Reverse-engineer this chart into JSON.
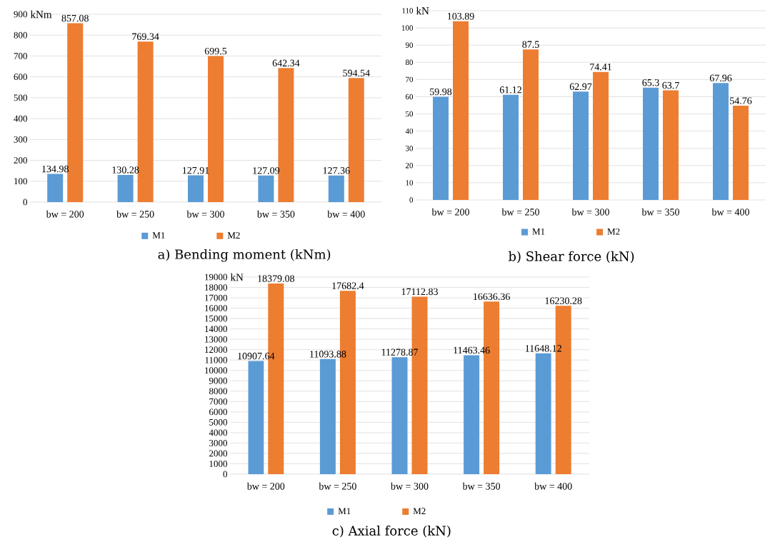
{
  "chart_data": [
    {
      "type": "bar",
      "title": "a) Bending moment (kNm)",
      "ylabel": "kNm",
      "categories": [
        "bw = 200",
        "bw = 250",
        "bw = 300",
        "bw = 350",
        "bw = 400"
      ],
      "series": [
        {
          "name": "M1",
          "color": "#5b9bd5",
          "values": [
            134.98,
            130.28,
            127.91,
            127.09,
            127.36
          ]
        },
        {
          "name": "M2",
          "color": "#ed7d31",
          "values": [
            857.08,
            769.34,
            699.5,
            642.34,
            594.54
          ]
        }
      ],
      "ylim": [
        0,
        900
      ],
      "yticks": [
        0,
        100,
        200,
        300,
        400,
        500,
        600,
        700,
        800,
        900
      ],
      "grid": "y",
      "legend": "bottom",
      "data_labels": true
    },
    {
      "type": "bar",
      "title": "b) Shear force (kN)",
      "ylabel": "kN",
      "categories": [
        "bw = 200",
        "bw = 250",
        "bw = 300",
        "bw = 350",
        "bw = 400"
      ],
      "series": [
        {
          "name": "M1",
          "color": "#5b9bd5",
          "values": [
            59.98,
            61.12,
            62.97,
            65.3,
            67.96
          ]
        },
        {
          "name": "M2",
          "color": "#ed7d31",
          "values": [
            103.89,
            87.5,
            74.41,
            63.7,
            54.76
          ]
        }
      ],
      "ylim": [
        0,
        110
      ],
      "yticks": [
        0,
        10,
        20,
        30,
        40,
        50,
        60,
        70,
        80,
        90,
        100,
        110
      ],
      "grid": "y",
      "legend": "bottom",
      "data_labels": true
    },
    {
      "type": "bar",
      "title": "c) Axial force (kN)",
      "ylabel": "kN",
      "categories": [
        "bw = 200",
        "bw = 250",
        "bw = 300",
        "bw = 350",
        "bw = 400"
      ],
      "series": [
        {
          "name": "M1",
          "color": "#5b9bd5",
          "values": [
            10907.64,
            11093.88,
            11278.87,
            11463.46,
            11648.12
          ]
        },
        {
          "name": "M2",
          "color": "#ed7d31",
          "values": [
            18379.08,
            17682.4,
            17112.83,
            16636.36,
            16230.28
          ]
        }
      ],
      "ylim": [
        0,
        19000
      ],
      "yticks": [
        0,
        1000,
        2000,
        3000,
        4000,
        5000,
        6000,
        7000,
        8000,
        9000,
        10000,
        11000,
        12000,
        13000,
        14000,
        15000,
        16000,
        17000,
        18000,
        19000
      ],
      "grid": "y",
      "legend": "bottom",
      "data_labels": true
    }
  ]
}
